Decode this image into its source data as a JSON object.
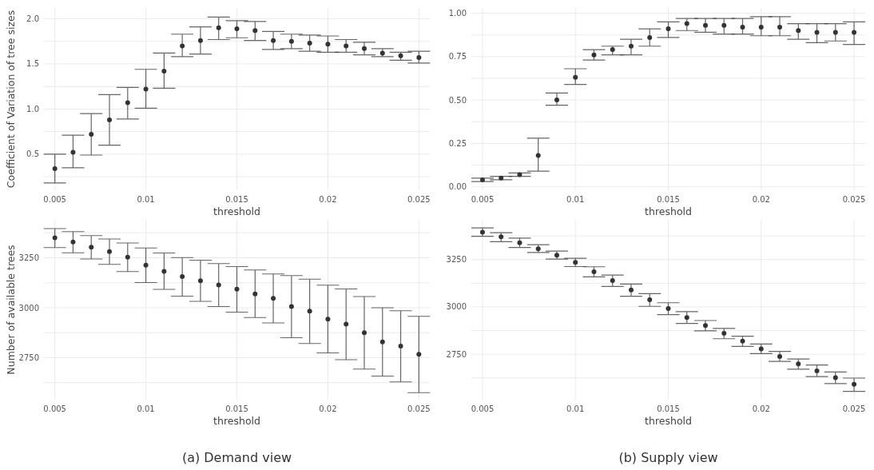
{
  "chart_data": [
    {
      "type": "scatter",
      "ylabel": "Coefficient of Variation of tree sizes",
      "xlabel": "threshold",
      "marker": "circle",
      "grid": true,
      "xlim": [
        0.0044,
        0.0256
      ],
      "xticks": [
        0.005,
        0.01,
        0.015,
        0.02,
        0.025
      ],
      "ylim": [
        0.1,
        2.12
      ],
      "yticks": [
        {
          "value": 0.5,
          "label": "0.5"
        },
        {
          "value": 0.75,
          "label": null
        },
        {
          "value": 1,
          "label": "1.0"
        },
        {
          "value": 1.25,
          "label": null
        },
        {
          "value": 1.5,
          "label": "1.5"
        },
        {
          "value": 1.75,
          "label": null
        },
        {
          "value": 2,
          "label": "2.0"
        },
        {
          "value": 0.25,
          "label": null
        }
      ],
      "x": [
        0.005,
        0.006,
        0.007,
        0.008,
        0.009,
        0.01,
        0.011,
        0.012,
        0.013,
        0.014,
        0.015,
        0.016,
        0.017,
        0.018,
        0.019,
        0.02,
        0.021,
        0.022,
        0.023,
        0.024,
        0.025
      ],
      "series": [
        {
          "color": "#333333",
          "values": [
            0.34,
            0.52,
            0.72,
            0.88,
            1.07,
            1.22,
            1.42,
            1.7,
            1.76,
            1.9,
            1.89,
            1.87,
            1.76,
            1.75,
            1.73,
            1.72,
            1.7,
            1.67,
            1.62,
            1.59,
            1.57
          ],
          "errors": [
            [
              0.18,
              0.5
            ],
            [
              0.35,
              0.71
            ],
            [
              0.49,
              0.95
            ],
            [
              0.6,
              1.16
            ],
            [
              0.89,
              1.24
            ],
            [
              1.01,
              1.44
            ],
            [
              1.23,
              1.62
            ],
            [
              1.58,
              1.83
            ],
            [
              1.61,
              1.91
            ],
            [
              1.77,
              2.02
            ],
            [
              1.79,
              1.98
            ],
            [
              1.76,
              1.97
            ],
            [
              1.66,
              1.86
            ],
            [
              1.67,
              1.83
            ],
            [
              1.64,
              1.82
            ],
            [
              1.63,
              1.81
            ],
            [
              1.63,
              1.77
            ],
            [
              1.6,
              1.74
            ],
            [
              1.58,
              1.67
            ],
            [
              1.54,
              1.63
            ],
            [
              1.51,
              1.64
            ]
          ]
        }
      ]
    },
    {
      "type": "scatter",
      "xlabel": "threshold",
      "marker": "circle",
      "grid": true,
      "xlim": [
        0.0044,
        0.0256
      ],
      "xticks": [
        0.005,
        0.01,
        0.015,
        0.02,
        0.025
      ],
      "ylim": [
        -0.02,
        1.03
      ],
      "yticks": [
        {
          "value": 0,
          "label": "0.00"
        },
        {
          "value": 0.125,
          "label": null
        },
        {
          "value": 0.25,
          "label": "0.25"
        },
        {
          "value": 0.375,
          "label": null
        },
        {
          "value": 0.5,
          "label": "0.50"
        },
        {
          "value": 0.625,
          "label": null
        },
        {
          "value": 0.75,
          "label": "0.75"
        },
        {
          "value": 0.875,
          "label": null
        },
        {
          "value": 1,
          "label": "1.00"
        }
      ],
      "x": [
        0.005,
        0.006,
        0.007,
        0.008,
        0.009,
        0.01,
        0.011,
        0.012,
        0.013,
        0.014,
        0.015,
        0.016,
        0.017,
        0.018,
        0.019,
        0.02,
        0.021,
        0.022,
        0.023,
        0.024,
        0.025
      ],
      "series": [
        {
          "color": "#333333",
          "values": [
            0.04,
            0.05,
            0.07,
            0.18,
            0.5,
            0.63,
            0.76,
            0.79,
            0.81,
            0.86,
            0.91,
            0.94,
            0.93,
            0.93,
            0.92,
            0.92,
            0.92,
            0.9,
            0.89,
            0.89,
            0.89
          ],
          "errors": [
            [
              0.03,
              0.05
            ],
            [
              0.04,
              0.06
            ],
            [
              0.06,
              0.08
            ],
            [
              0.09,
              0.28
            ],
            [
              0.47,
              0.54
            ],
            [
              0.59,
              0.68
            ],
            [
              0.73,
              0.79
            ],
            [
              0.76,
              0.81
            ],
            [
              0.76,
              0.85
            ],
            [
              0.81,
              0.91
            ],
            [
              0.86,
              0.95
            ],
            [
              0.9,
              0.97
            ],
            [
              0.89,
              0.97
            ],
            [
              0.88,
              0.97
            ],
            [
              0.88,
              0.97
            ],
            [
              0.87,
              0.98
            ],
            [
              0.87,
              0.98
            ],
            [
              0.85,
              0.94
            ],
            [
              0.83,
              0.94
            ],
            [
              0.84,
              0.94
            ],
            [
              0.82,
              0.95
            ]
          ]
        }
      ]
    },
    {
      "type": "scatter",
      "ylabel": "Number of available trees",
      "xlabel": "threshold",
      "marker": "circle",
      "grid": true,
      "annotations": [
        "(a) Demand view"
      ],
      "xlim": [
        0.0044,
        0.0256
      ],
      "xticks": [
        0.005,
        0.01,
        0.015,
        0.02,
        0.025
      ],
      "ylim": [
        2540,
        3440
      ],
      "yticks": [
        {
          "value": 2625,
          "label": null
        },
        {
          "value": 2750,
          "label": "2750"
        },
        {
          "value": 2875,
          "label": null
        },
        {
          "value": 3000,
          "label": "3000"
        },
        {
          "value": 3125,
          "label": null
        },
        {
          "value": 3250,
          "label": "3250"
        },
        {
          "value": 3375,
          "label": null
        }
      ],
      "x": [
        0.005,
        0.006,
        0.007,
        0.008,
        0.009,
        0.01,
        0.011,
        0.012,
        0.013,
        0.014,
        0.015,
        0.016,
        0.017,
        0.018,
        0.019,
        0.02,
        0.021,
        0.022,
        0.023,
        0.024,
        0.025
      ],
      "series": [
        {
          "color": "#333333",
          "values": [
            3350,
            3329,
            3303,
            3281,
            3253,
            3213,
            3182,
            3156,
            3135,
            3114,
            3093,
            3069,
            3047,
            3006,
            2983,
            2943,
            2918,
            2875,
            2829,
            2808,
            2767
          ],
          "errors": [
            [
              3301,
              3396
            ],
            [
              3275,
              3381
            ],
            [
              3244,
              3361
            ],
            [
              3217,
              3344
            ],
            [
              3181,
              3324
            ],
            [
              3126,
              3299
            ],
            [
              3092,
              3274
            ],
            [
              3058,
              3251
            ],
            [
              3032,
              3238
            ],
            [
              3006,
              3221
            ],
            [
              2978,
              3206
            ],
            [
              2951,
              3189
            ],
            [
              2924,
              3169
            ],
            [
              2850,
              3161
            ],
            [
              2821,
              3143
            ],
            [
              2774,
              3113
            ],
            [
              2740,
              3094
            ],
            [
              2693,
              3056
            ],
            [
              2658,
              3000
            ],
            [
              2629,
              2985
            ],
            [
              2575,
              2957
            ]
          ]
        }
      ]
    },
    {
      "type": "scatter",
      "xlabel": "threshold",
      "marker": "circle",
      "grid": true,
      "annotations": [
        "(b) Supply view"
      ],
      "xlim": [
        0.0044,
        0.0256
      ],
      "xticks": [
        0.005,
        0.01,
        0.015,
        0.02,
        0.025
      ],
      "ylim": [
        2510,
        3460
      ],
      "yticks": [
        {
          "value": 2625,
          "label": null
        },
        {
          "value": 2750,
          "label": "2750"
        },
        {
          "value": 2875,
          "label": null
        },
        {
          "value": 3000,
          "label": "3000"
        },
        {
          "value": 3125,
          "label": null
        },
        {
          "value": 3250,
          "label": "3250"
        },
        {
          "value": 3375,
          "label": null
        }
      ],
      "x": [
        0.005,
        0.006,
        0.007,
        0.008,
        0.009,
        0.01,
        0.011,
        0.012,
        0.013,
        0.014,
        0.015,
        0.016,
        0.017,
        0.018,
        0.019,
        0.02,
        0.021,
        0.022,
        0.023,
        0.024,
        0.025
      ],
      "series": [
        {
          "color": "#333333",
          "values": [
            3395,
            3370,
            3339,
            3307,
            3273,
            3235,
            3186,
            3139,
            3089,
            3038,
            2991,
            2944,
            2902,
            2860,
            2819,
            2778,
            2738,
            2699,
            2662,
            2626,
            2591
          ],
          "errors": [
            [
              3373,
              3417
            ],
            [
              3344,
              3392
            ],
            [
              3314,
              3363
            ],
            [
              3287,
              3329
            ],
            [
              3253,
              3295
            ],
            [
              3213,
              3257
            ],
            [
              3159,
              3212
            ],
            [
              3108,
              3168
            ],
            [
              3056,
              3121
            ],
            [
              3003,
              3070
            ],
            [
              2959,
              3022
            ],
            [
              2913,
              2975
            ],
            [
              2874,
              2928
            ],
            [
              2832,
              2886
            ],
            [
              2791,
              2845
            ],
            [
              2753,
              2804
            ],
            [
              2712,
              2765
            ],
            [
              2671,
              2725
            ],
            [
              2632,
              2693
            ],
            [
              2595,
              2656
            ],
            [
              2554,
              2624
            ]
          ]
        }
      ]
    }
  ]
}
